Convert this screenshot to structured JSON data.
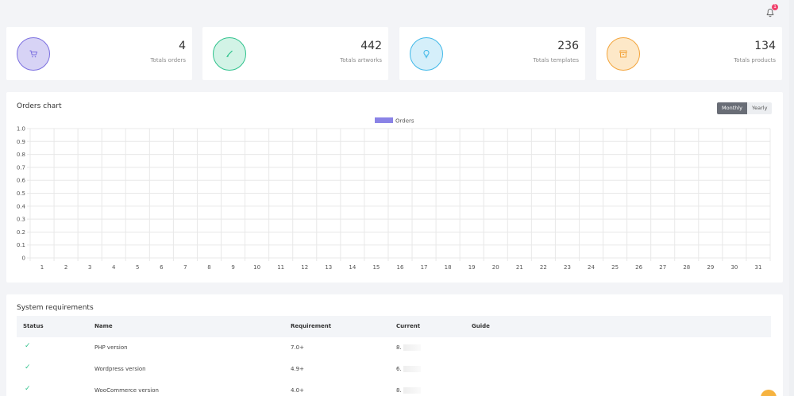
{
  "stats": [
    {
      "value": "4",
      "label": "Totals orders",
      "icon": "cart-icon",
      "color": "#7b6fe0",
      "bg": "#d7d3f5"
    },
    {
      "value": "442",
      "label": "Totals artworks",
      "icon": "brush-icon",
      "color": "#2ec28c",
      "bg": "#d2f3e6"
    },
    {
      "value": "236",
      "label": "Totals templates",
      "icon": "bulb-icon",
      "color": "#3fb8e8",
      "bg": "#d5effa"
    },
    {
      "value": "134",
      "label": "Totals products",
      "icon": "box-icon",
      "color": "#f3a43b",
      "bg": "#fde8c8"
    }
  ],
  "notifications": {
    "count": "1",
    "icon": "bell-icon"
  },
  "chart": {
    "title": "Orders chart",
    "toggle": {
      "monthly": "Monthly",
      "yearly": "Yearly",
      "active": "monthly"
    }
  },
  "chart_data": {
    "type": "bar",
    "categories": [
      "1",
      "2",
      "3",
      "4",
      "5",
      "6",
      "7",
      "8",
      "9",
      "10",
      "11",
      "12",
      "13",
      "14",
      "15",
      "16",
      "17",
      "18",
      "19",
      "20",
      "21",
      "22",
      "23",
      "24",
      "25",
      "26",
      "27",
      "28",
      "29",
      "30",
      "31"
    ],
    "series": [
      {
        "name": "Orders",
        "color": "#8a83e6",
        "values": [
          0,
          0,
          0,
          0,
          0,
          0,
          0,
          0,
          0,
          0,
          0,
          0,
          0,
          0,
          0,
          0,
          0,
          0,
          0,
          0,
          0,
          0,
          0,
          0,
          0,
          0,
          0,
          0,
          0,
          0,
          0
        ]
      }
    ],
    "ylim": [
      0,
      1
    ],
    "yticks": [
      "0",
      "0.1",
      "0.2",
      "0.3",
      "0.4",
      "0.5",
      "0.6",
      "0.7",
      "0.8",
      "0.9",
      "1.0"
    ],
    "grid": true,
    "legend": "top"
  },
  "requirements": {
    "title": "System requirements",
    "headers": {
      "status": "Status",
      "name": "Name",
      "requirement": "Requirement",
      "current": "Current",
      "guide": "Guide"
    },
    "rows": [
      {
        "status": "✓",
        "name": "PHP version",
        "requirement": "7.0+",
        "current": "8.",
        "guide": ""
      },
      {
        "status": "✓",
        "name": "Wordpress version",
        "requirement": "4.9+",
        "current": "6.",
        "guide": ""
      },
      {
        "status": "✓",
        "name": "WooCommerce version",
        "requirement": "4.0+",
        "current": "8.",
        "guide": ""
      }
    ]
  }
}
